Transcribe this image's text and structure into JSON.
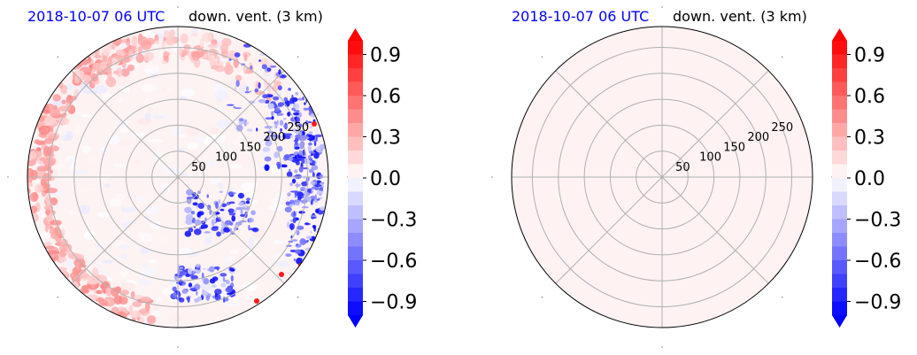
{
  "chart_data": [
    {
      "type": "heatmap",
      "projection": "polar",
      "title_left": "2018-10-07 06 UTC",
      "title_right": "down. vent. (3 km)",
      "title_left_color": "#0000ff",
      "radial_ticks": [
        "50",
        "100",
        "150",
        "200",
        "250"
      ],
      "radial_tick_values": [
        50,
        100,
        150,
        200,
        250
      ],
      "r_max": 290,
      "angular_gridlines_deg": [
        0,
        45,
        90,
        135,
        180,
        225,
        270,
        315
      ],
      "field": "mixed positive/negative values; red band near outer rim on left and lower-left, blue patches on right and lower-right",
      "grid": true,
      "colorbar": {
        "ticks": [
          "0.9",
          "0.6",
          "0.3",
          "0.0",
          "−0.3",
          "−0.6",
          "−0.9"
        ],
        "tick_values": [
          0.9,
          0.6,
          0.3,
          0.0,
          -0.3,
          -0.6,
          -0.9
        ],
        "range": [
          -1.0,
          1.0
        ],
        "extend": "both",
        "colormap": "bwr"
      }
    },
    {
      "type": "heatmap",
      "projection": "polar",
      "title_left": "2018-10-07 06 UTC",
      "title_right": "down. vent. (3 km)",
      "title_left_color": "#0000ff",
      "radial_ticks": [
        "50",
        "100",
        "150",
        "200",
        "250"
      ],
      "radial_tick_values": [
        50,
        100,
        150,
        200,
        250
      ],
      "r_max": 290,
      "angular_gridlines_deg": [
        0,
        45,
        90,
        135,
        180,
        225,
        270,
        315
      ],
      "field": "uniform slightly positive value over the whole domain",
      "uniform_value": 0.05,
      "grid": true,
      "colorbar": {
        "ticks": [
          "0.9",
          "0.6",
          "0.3",
          "0.0",
          "−0.3",
          "−0.6",
          "−0.9"
        ],
        "tick_values": [
          0.9,
          0.6,
          0.3,
          0.0,
          -0.3,
          -0.6,
          -0.9
        ],
        "range": [
          -1.0,
          1.0
        ],
        "extend": "both",
        "colormap": "bwr"
      }
    }
  ]
}
